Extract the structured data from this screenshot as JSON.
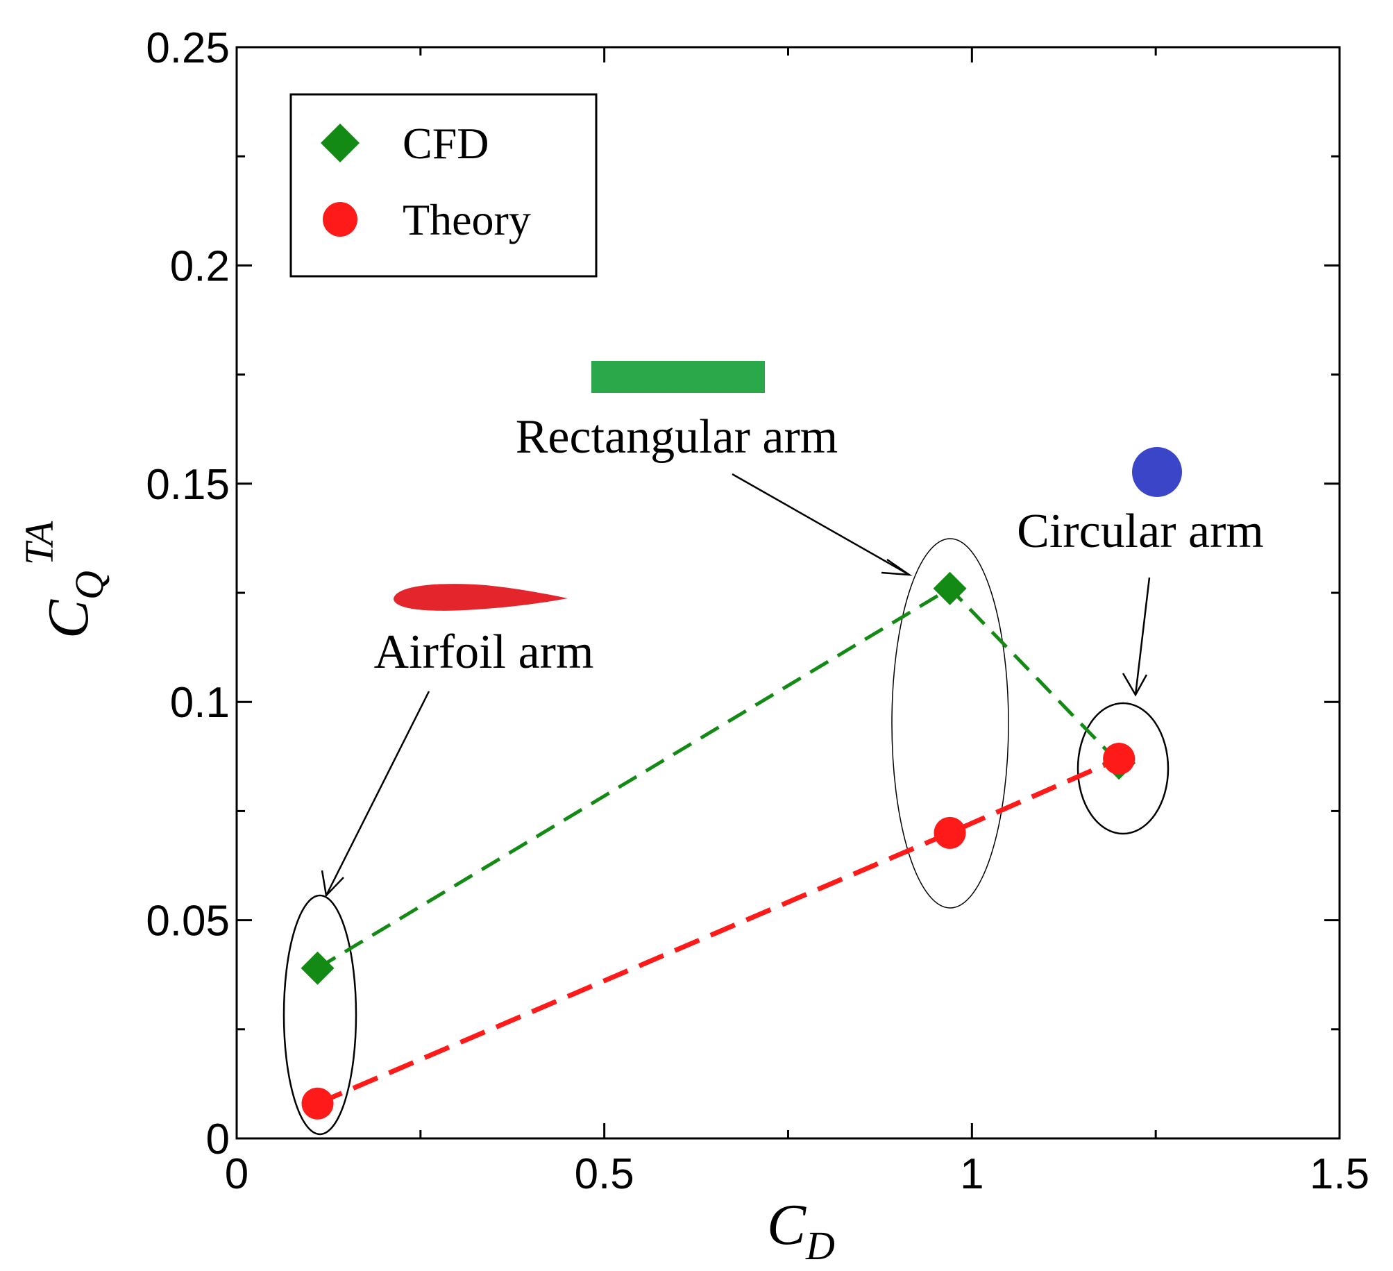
{
  "chart_data": {
    "type": "scatter",
    "xlabel": {
      "main": "C",
      "sub": "D"
    },
    "ylabel": {
      "main": "C",
      "sub": "Q",
      "sup": "TA"
    },
    "xlim": [
      0,
      1.5
    ],
    "ylim": [
      0,
      0.25
    ],
    "x_ticks": [
      "0",
      "0.5",
      "1",
      "1.5"
    ],
    "y_ticks": [
      "0",
      "0.05",
      "0.1",
      "0.15",
      "0.2",
      "0.25"
    ],
    "x_tick_values": [
      0,
      0.5,
      1,
      1.5
    ],
    "y_tick_values": [
      0,
      0.05,
      0.1,
      0.15,
      0.2,
      0.25
    ],
    "grid": false,
    "legend_position": "top-left",
    "series": [
      {
        "name": "CFD",
        "marker": "diamond",
        "color": "#138a13",
        "line": "dashed",
        "points": [
          [
            0.11,
            0.039
          ],
          [
            0.97,
            0.126
          ],
          [
            1.2,
            0.086
          ]
        ]
      },
      {
        "name": "Theory",
        "marker": "circle",
        "color": "#ff1a1a",
        "line": "dashed",
        "points": [
          [
            0.11,
            0.008
          ],
          [
            0.97,
            0.07
          ],
          [
            1.2,
            0.087
          ]
        ]
      }
    ],
    "annotations": [
      {
        "text": "Airfoil arm",
        "icon": "airfoil-shape-icon",
        "icon_color": "#e4252b"
      },
      {
        "text": "Rectangular arm",
        "icon": "rectangle-shape-icon",
        "icon_color": "#2aa84a"
      },
      {
        "text": "Circular arm",
        "icon": "circle-shape-icon",
        "icon_color": "#3a45c8"
      }
    ]
  }
}
